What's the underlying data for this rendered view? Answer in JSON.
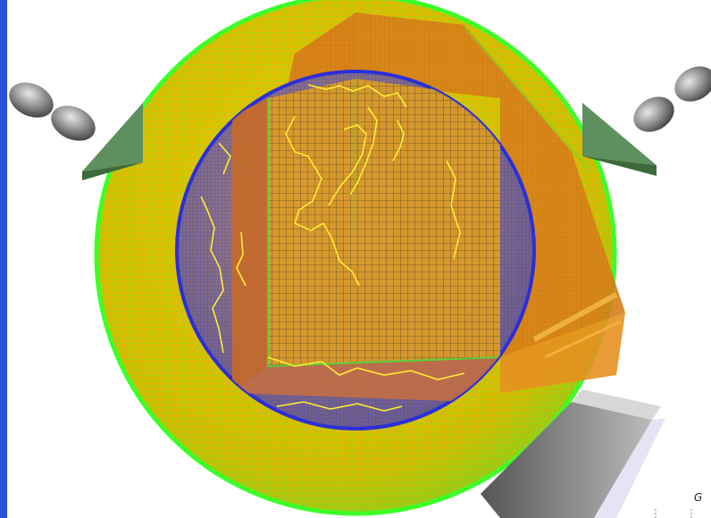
{
  "colors": {
    "background": "#ffffff",
    "left_bar": "#2b4fd6",
    "outer_shell": "#e8c000",
    "outer_grid": "#3cff28",
    "inner_sphere": "#9a7a7a",
    "inner_grid": "#2f3fd0",
    "core_block": "#d99a28",
    "core_grid": "#7a5a2a",
    "cutaway_wall": "#d4841a",
    "coastlines": "#ffee33",
    "green_shapes": "#5a8a5a",
    "grey_ellipses": "#7a7a7a",
    "grey_block": "#777777"
  },
  "icons": {
    "left_ellipse_pair": "grey-ellipse-icon",
    "right_ellipse_pair": "grey-ellipse-icon",
    "left_wedge": "green-wedge-icon",
    "right_wedge": "green-wedge-icon",
    "bottom_block": "grey-block-icon"
  },
  "corner_text": "G"
}
